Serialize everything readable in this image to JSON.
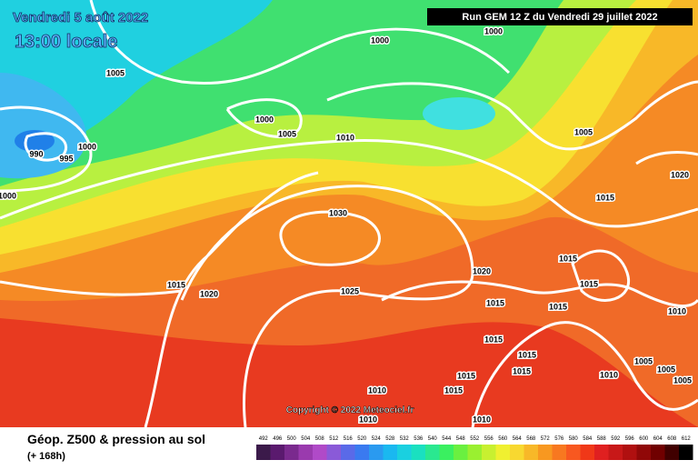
{
  "header": {
    "date": "Vendredi 5 août 2022",
    "time": "13:00 locale",
    "run": "Run GEM 12 Z du Vendredi 29 juillet 2022"
  },
  "copyright": "Copyright © 2022 Meteociel.fr",
  "footer": {
    "title": "Géop. Z500 & pression au sol",
    "lead": "(+ 168h)"
  },
  "scale": {
    "values": [
      492,
      496,
      500,
      504,
      508,
      512,
      516,
      520,
      524,
      528,
      532,
      536,
      540,
      544,
      548,
      552,
      556,
      560,
      564,
      568,
      572,
      576,
      580,
      584,
      588,
      592,
      596,
      600,
      604,
      608,
      612
    ],
    "colors": [
      "#3b1a4a",
      "#5a1a6e",
      "#7a2a8e",
      "#9a3aae",
      "#b04ac8",
      "#8a5ad8",
      "#5a6ae8",
      "#3a7af0",
      "#2a9af0",
      "#1ab8f0",
      "#1ad0e0",
      "#1ae0c0",
      "#2ae890",
      "#3af060",
      "#6af040",
      "#9af030",
      "#c8f030",
      "#f0f030",
      "#f8d830",
      "#f8b828",
      "#f89820",
      "#f87820",
      "#f85820",
      "#f03818",
      "#e02020",
      "#c81818",
      "#b01010",
      "#900808",
      "#700000",
      "#400000",
      "#000000"
    ]
  },
  "isobar_labels": [
    "1000",
    "1000",
    "1005",
    "1000",
    "1005",
    "1010",
    "1000",
    "990",
    "995",
    "1000",
    "1005",
    "1020",
    "1015",
    "1030",
    "1015",
    "1020",
    "1015",
    "1020",
    "1025",
    "1015",
    "1015",
    "1015",
    "1010",
    "1015",
    "1015",
    "1015",
    "1005",
    "1005",
    "1015",
    "1010",
    "1005",
    "1015",
    "1010",
    "1010",
    "1010"
  ]
}
